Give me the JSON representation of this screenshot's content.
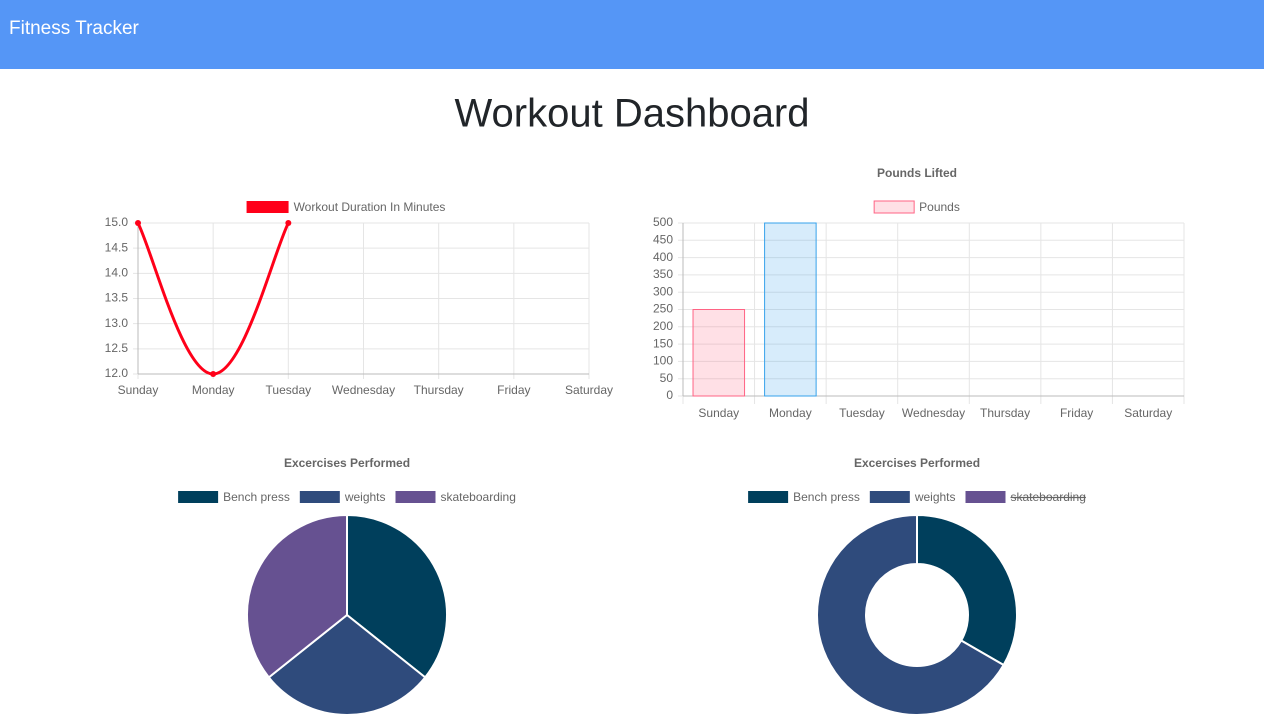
{
  "navbar": {
    "brand": "Fitness Tracker"
  },
  "heading": "Workout Dashboard",
  "chart_data": [
    {
      "type": "line",
      "categories": [
        "Sunday",
        "Monday",
        "Tuesday",
        "Wednesday",
        "Thursday",
        "Friday",
        "Saturday"
      ],
      "series": [
        {
          "name": "Workout Duration In Minutes",
          "color": "#ff0019",
          "values": [
            15,
            12,
            15,
            null,
            null,
            null,
            null
          ]
        }
      ],
      "ylim": [
        12,
        15
      ],
      "yticks": [
        {
          "value": 12,
          "label": "12.0"
        },
        {
          "value": 12.5,
          "label": "12.5"
        },
        {
          "value": 13,
          "label": "13.0"
        },
        {
          "value": 13.5,
          "label": "13.5"
        },
        {
          "value": 14,
          "label": "14.0"
        },
        {
          "value": 14.5,
          "label": "14.5"
        },
        {
          "value": 15,
          "label": "15.0"
        }
      ],
      "grid": true
    },
    {
      "type": "bar",
      "title": "Pounds Lifted",
      "categories": [
        "Sunday",
        "Monday",
        "Tuesday",
        "Wednesday",
        "Thursday",
        "Friday",
        "Saturday"
      ],
      "series": [
        {
          "name": "Pounds",
          "values": [
            250,
            500,
            null,
            null,
            null,
            null,
            null
          ],
          "colors": [
            "rgba(255, 99, 132, 0.2)",
            "rgba(54, 162, 235, 0.2)"
          ],
          "border_colors": [
            "rgb(255, 99, 132)",
            "rgb(54, 162, 235)"
          ]
        }
      ],
      "ylim": [
        0,
        500
      ],
      "yticks": [
        0,
        50,
        100,
        150,
        200,
        250,
        300,
        350,
        400,
        450,
        500
      ],
      "grid": true
    },
    {
      "type": "pie",
      "title": "Excercises Performed",
      "categories": [
        "Bench press",
        "weights",
        "skateboarding"
      ],
      "values": [
        5,
        4,
        5
      ],
      "colors": [
        "#003f5c",
        "#2f4b7c",
        "#665191"
      ],
      "hidden": [
        false,
        false,
        false
      ]
    },
    {
      "type": "doughnut",
      "title": "Excercises Performed",
      "categories": [
        "Bench press",
        "weights",
        "skateboarding"
      ],
      "values": [
        1,
        2,
        1
      ],
      "colors": [
        "#003f5c",
        "#2f4b7c",
        "#665191"
      ],
      "hidden": [
        false,
        false,
        true
      ]
    }
  ]
}
